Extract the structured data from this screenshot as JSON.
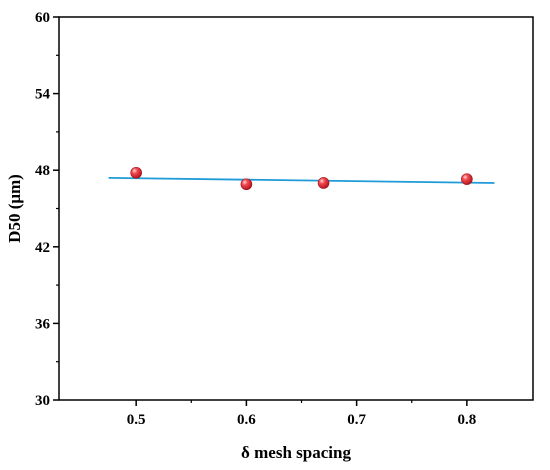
{
  "chart_data": {
    "type": "scatter",
    "title": "",
    "xlabel": "δ mesh spacing",
    "ylabel": "D50 (μm)",
    "xlim": [
      0.43,
      0.86
    ],
    "ylim": [
      30,
      60
    ],
    "x_ticks": [
      0.5,
      0.6,
      0.7,
      0.8
    ],
    "x_tick_labels": [
      "0.5",
      "0.6",
      "0.7",
      "0.8"
    ],
    "y_ticks": [
      30,
      36,
      42,
      48,
      54,
      60
    ],
    "y_tick_labels": [
      "30",
      "36",
      "42",
      "48",
      "54",
      "60"
    ],
    "grid": false,
    "legend": "none",
    "series": [
      {
        "kind": "points",
        "color": "#e8313a",
        "points": [
          {
            "x": 0.5,
            "y": 47.8
          },
          {
            "x": 0.6,
            "y": 46.9
          },
          {
            "x": 0.67,
            "y": 47.0
          },
          {
            "x": 0.8,
            "y": 47.3
          }
        ]
      },
      {
        "kind": "fit-line",
        "color": "#1f9bd7",
        "points": [
          {
            "x": 0.475,
            "y": 47.4
          },
          {
            "x": 0.825,
            "y": 47.0
          }
        ]
      }
    ]
  }
}
